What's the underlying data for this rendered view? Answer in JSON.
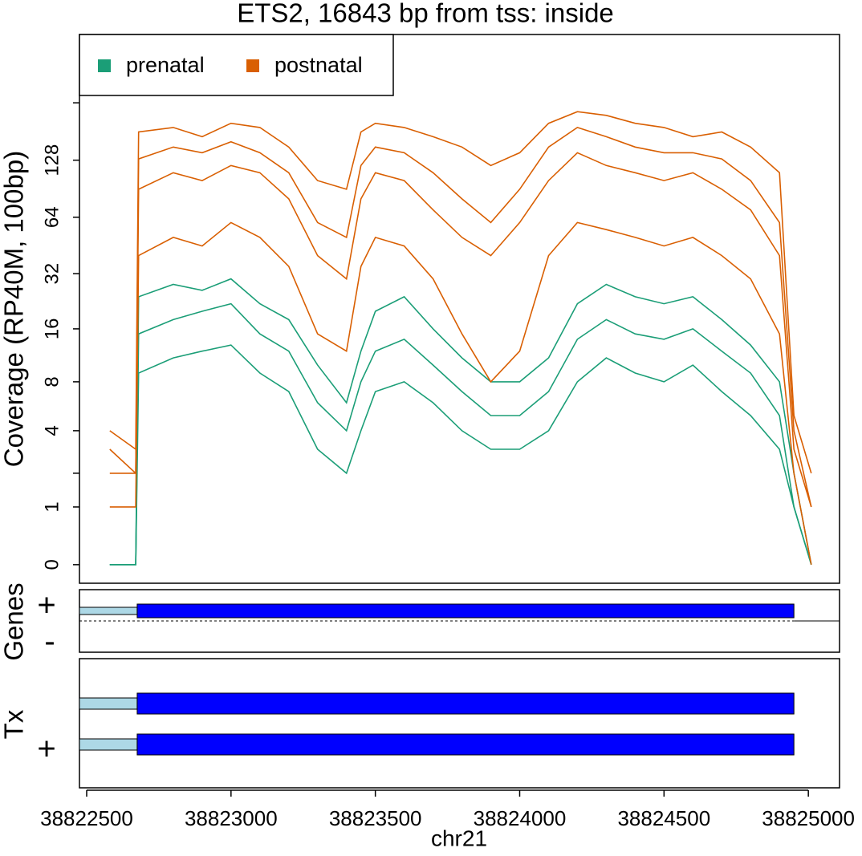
{
  "chart_data": {
    "type": "line",
    "title": "ETS2, 16843 bp from tss: inside",
    "y_label": "Coverage (RP40M, 100bp)",
    "x_label": "chr21",
    "y_scale": "log2(x+1)",
    "xlim": [
      38822475,
      38825108
    ],
    "xticks": [
      38822500,
      38823000,
      38823500,
      38824000,
      38824500,
      38825000
    ],
    "ylim": [
      -0.2,
      583
    ],
    "yticks": [
      0,
      1,
      4,
      8,
      16,
      32,
      64,
      128
    ],
    "yminor_ticks": [
      2,
      256
    ],
    "x": [
      38822580,
      38822670,
      38822680,
      38822800,
      38822900,
      38823000,
      38823100,
      38823200,
      38823300,
      38823400,
      38823450,
      38823500,
      38823600,
      38823700,
      38823800,
      38823900,
      38824000,
      38824100,
      38824200,
      38824300,
      38824400,
      38824500,
      38824600,
      38824700,
      38824800,
      38824900,
      38824950,
      38825010
    ],
    "series": [
      {
        "name": "prenatal",
        "color": "#1b9e77",
        "lines": [
          [
            0,
            0,
            24,
            28,
            26,
            30,
            22,
            18,
            10,
            6,
            12,
            20,
            24,
            16,
            11,
            8,
            8,
            11,
            22,
            28,
            24,
            22,
            24,
            18,
            13,
            8,
            2,
            0
          ],
          [
            0,
            0,
            15,
            18,
            20,
            22,
            15,
            12,
            6,
            4,
            8,
            12,
            14,
            10,
            7,
            5,
            5,
            7,
            14,
            18,
            15,
            14,
            16,
            12,
            9,
            5,
            1,
            0
          ],
          [
            0,
            0,
            9,
            11,
            12,
            13,
            9,
            7,
            3,
            2,
            4,
            7,
            8,
            6,
            4,
            3,
            3,
            4,
            8,
            11,
            9,
            8,
            10,
            7,
            5,
            3,
            1,
            0
          ]
        ]
      },
      {
        "name": "postnatal",
        "color": "#d95f02",
        "lines": [
          [
            4,
            3,
            180,
            190,
            170,
            200,
            190,
            150,
            100,
            90,
            180,
            200,
            190,
            170,
            150,
            120,
            140,
            200,
            230,
            220,
            200,
            190,
            170,
            180,
            150,
            110,
            5,
            2
          ],
          [
            3,
            2,
            130,
            150,
            140,
            160,
            140,
            110,
            60,
            50,
            120,
            150,
            140,
            110,
            80,
            60,
            90,
            150,
            190,
            170,
            150,
            140,
            140,
            130,
            100,
            60,
            4,
            1
          ],
          [
            2,
            2,
            90,
            110,
            100,
            120,
            110,
            80,
            40,
            30,
            80,
            110,
            100,
            70,
            50,
            40,
            60,
            100,
            140,
            120,
            110,
            100,
            110,
            90,
            70,
            40,
            3,
            1
          ],
          [
            1,
            1,
            40,
            50,
            45,
            60,
            50,
            35,
            15,
            12,
            35,
            50,
            45,
            30,
            15,
            8,
            12,
            40,
            60,
            55,
            50,
            45,
            50,
            40,
            30,
            15,
            2,
            0
          ]
        ]
      }
    ],
    "genes_panel": {
      "label": "Genes",
      "strands": [
        "+",
        "-"
      ],
      "utr": [
        38822475,
        38822675
      ],
      "cds": [
        38822675,
        38824950
      ],
      "utr_color": "#add8e6",
      "cds_color": "#0000ff"
    },
    "tx_panel": {
      "label": "Tx",
      "strand": "+",
      "transcripts": [
        {
          "utr": [
            38822475,
            38822675
          ],
          "cds": [
            38822675,
            38824950
          ]
        },
        {
          "utr": [
            38822475,
            38822675
          ],
          "cds": [
            38822675,
            38824950
          ]
        }
      ]
    }
  }
}
